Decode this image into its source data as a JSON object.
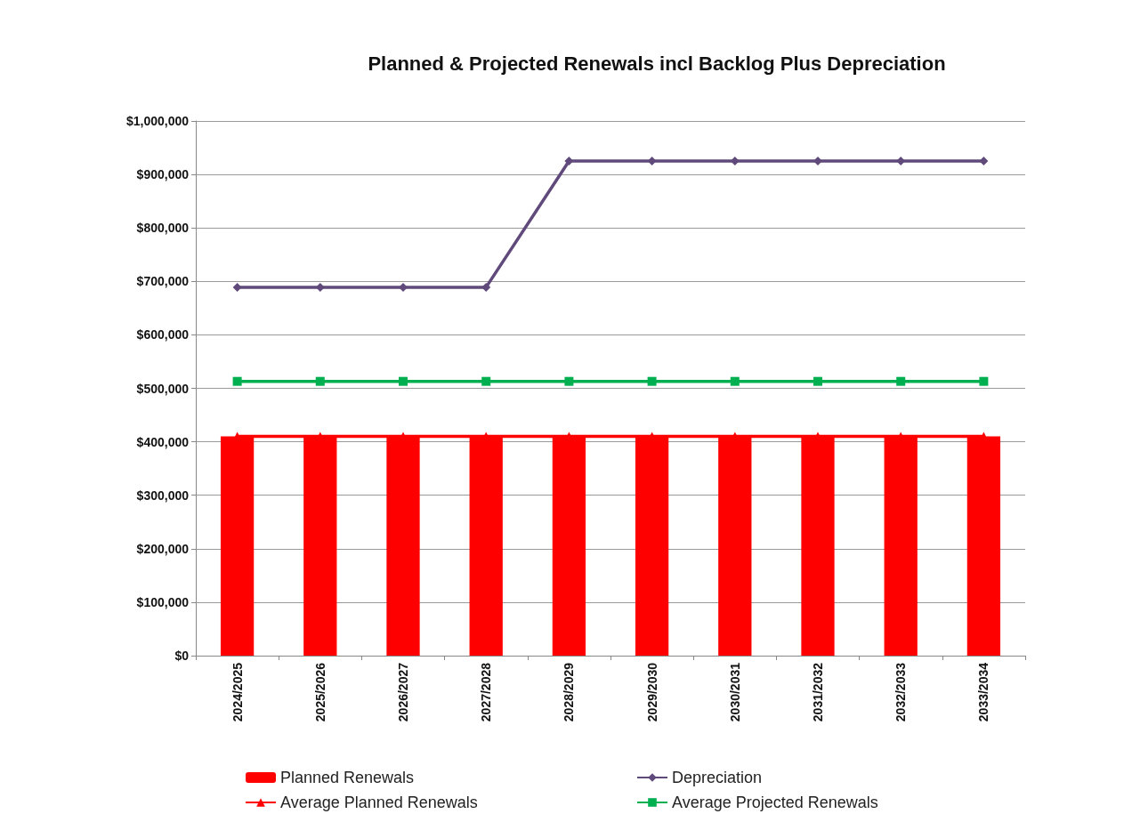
{
  "chart_data": {
    "type": "bar",
    "title": "Planned & Projected Renewals incl Backlog Plus Depreciation",
    "categories": [
      "2024/2025",
      "2025/2026",
      "2026/2027",
      "2027/2028",
      "2028/2029",
      "2029/2030",
      "2030/2031",
      "2031/2032",
      "2032/2033",
      "2033/2034"
    ],
    "series": [
      {
        "name": "Planned Renewals",
        "color": "#ff0000",
        "values": [
          410000,
          410000,
          410000,
          410000,
          410000,
          410000,
          410000,
          410000,
          410000,
          410000
        ]
      },
      {
        "name": "Depreciation",
        "type": "line",
        "color": "#604a7b",
        "marker": "diamond",
        "values": [
          689000,
          689000,
          689000,
          689000,
          925000,
          925000,
          925000,
          925000,
          925000,
          925000
        ]
      },
      {
        "name": "Average Planned Renewals",
        "type": "line",
        "color": "#ff0000",
        "marker": "triangle",
        "values": [
          410000,
          410000,
          410000,
          410000,
          410000,
          410000,
          410000,
          410000,
          410000,
          410000
        ]
      },
      {
        "name": "Average Projected Renewals",
        "type": "line",
        "color": "#00b050",
        "marker": "square",
        "values": [
          513000,
          513000,
          513000,
          513000,
          513000,
          513000,
          513000,
          513000,
          513000,
          513000
        ]
      }
    ],
    "ylim": [
      0,
      1000000
    ],
    "yticks": [
      {
        "value": 0,
        "label": "$0"
      },
      {
        "value": 100000,
        "label": "$100,000"
      },
      {
        "value": 200000,
        "label": "$200,000"
      },
      {
        "value": 300000,
        "label": "$300,000"
      },
      {
        "value": 400000,
        "label": "$400,000"
      },
      {
        "value": 500000,
        "label": "$500,000"
      },
      {
        "value": 600000,
        "label": "$600,000"
      },
      {
        "value": 700000,
        "label": "$700,000"
      },
      {
        "value": 800000,
        "label": "$800,000"
      },
      {
        "value": 900000,
        "label": "$900,000"
      },
      {
        "value": 1000000,
        "label": "$1,000,000"
      }
    ],
    "grid": "y",
    "legend": "bottom"
  }
}
